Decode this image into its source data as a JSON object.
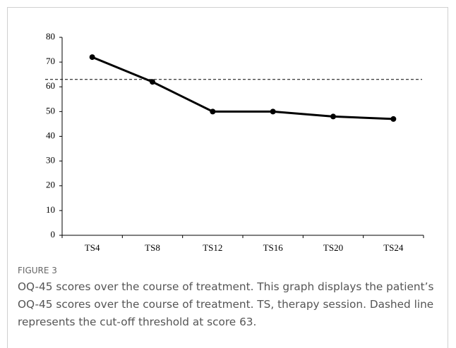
{
  "chart_data": {
    "type": "line",
    "categories": [
      "TS4",
      "TS8",
      "TS12",
      "TS16",
      "TS20",
      "TS24"
    ],
    "series": [
      {
        "name": "OQ-45",
        "color": "#000000",
        "values": [
          72,
          62,
          50,
          50,
          48,
          47
        ]
      }
    ],
    "threshold": 63,
    "ylim": [
      0,
      80
    ],
    "yticks": [
      0,
      10,
      20,
      30,
      40,
      50,
      60,
      70,
      80
    ]
  },
  "figure": {
    "label": "FIGURE 3",
    "caption": "OQ-45 scores over the course of treatment. This graph displays the patient’s OQ-45 scores over the course of treatment. TS, therapy session. Dashed line represents the cut-off threshold at score 63."
  }
}
